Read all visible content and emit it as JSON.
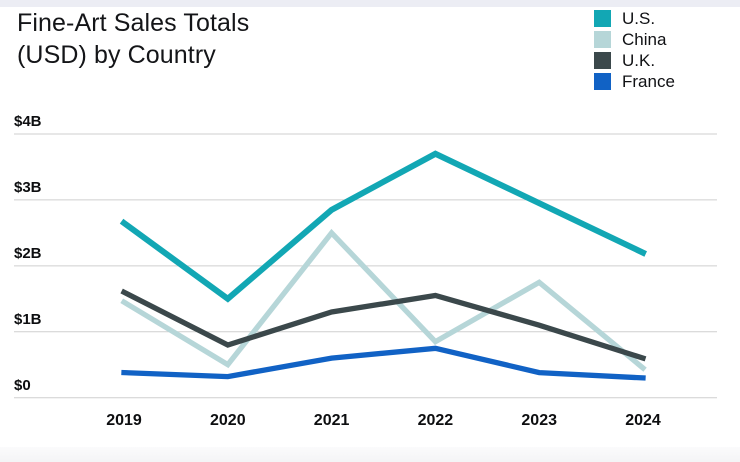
{
  "title": {
    "line1": "Fine-Art Sales Totals",
    "line2": "(USD) by Country"
  },
  "chart_data": {
    "type": "line",
    "title": "Fine-Art Sales Totals (USD) by Country",
    "xlabel": "",
    "ylabel": "",
    "x": [
      "2019",
      "2020",
      "2021",
      "2022",
      "2023",
      "2024"
    ],
    "series": [
      {
        "name": "U.S.",
        "color": "#12a7b4",
        "values": [
          2.65,
          1.5,
          2.85,
          3.7,
          2.95,
          2.2
        ]
      },
      {
        "name": "China",
        "color": "#b6d6d8",
        "values": [
          1.45,
          0.5,
          2.5,
          0.85,
          1.75,
          0.45
        ]
      },
      {
        "name": "U.K.",
        "color": "#3b484b",
        "values": [
          1.6,
          0.8,
          1.3,
          1.55,
          1.1,
          0.6
        ]
      },
      {
        "name": "France",
        "color": "#1162c5",
        "values": [
          0.38,
          0.32,
          0.6,
          0.75,
          0.38,
          0.3
        ]
      }
    ],
    "y_ticks": [
      {
        "label": "$4B",
        "value": 4
      },
      {
        "label": "$3B",
        "value": 3
      },
      {
        "label": "$2B",
        "value": 2
      },
      {
        "label": "$1B",
        "value": 1
      },
      {
        "label": "$0",
        "value": 0
      }
    ],
    "ylim": [
      0,
      4
    ],
    "grid": true,
    "gridline_color": "#cfcfcf",
    "legend_position": "top-right"
  }
}
